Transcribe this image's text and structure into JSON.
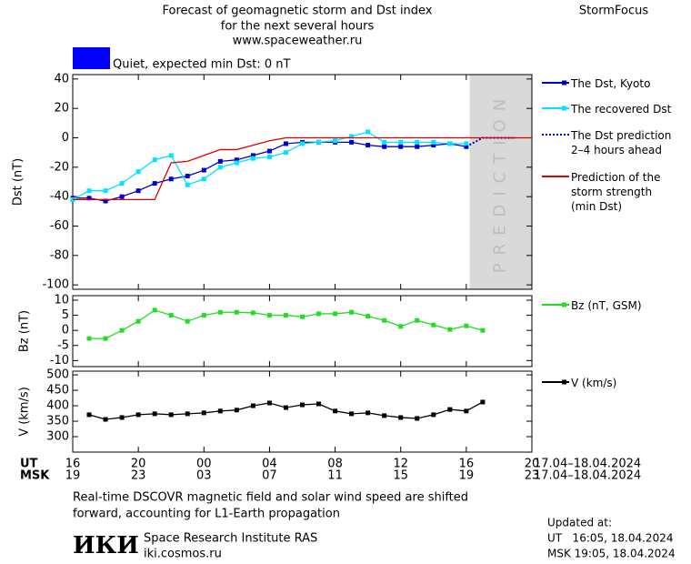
{
  "header": {
    "title_lines": [
      "Forecast of geomagnetic storm and Dst index",
      "for the next several hours",
      "www.spaceweather.ru"
    ],
    "brand": "StormFocus",
    "status": "Quiet, expected min Dst: 0 nT",
    "status_color": "#0000ff"
  },
  "x_axis": {
    "xlim": [
      0,
      28
    ],
    "xticks": [
      {
        "value": 0,
        "label": "16"
      },
      {
        "value": 4,
        "label": "20"
      },
      {
        "value": 8,
        "label": "00"
      },
      {
        "value": 12,
        "label": "04"
      },
      {
        "value": 16,
        "label": "08"
      },
      {
        "value": 20,
        "label": "12"
      },
      {
        "value": 24,
        "label": "16"
      },
      {
        "value": 28,
        "label": "20"
      }
    ],
    "x2ticks": [
      {
        "value": 0,
        "label": "19"
      },
      {
        "value": 4,
        "label": "23"
      },
      {
        "value": 8,
        "label": "03"
      },
      {
        "value": 12,
        "label": "07"
      },
      {
        "value": 16,
        "label": "11"
      },
      {
        "value": 20,
        "label": "15"
      },
      {
        "value": 24,
        "label": "19"
      },
      {
        "value": 28,
        "label": "23"
      }
    ],
    "row_labels": [
      "UT",
      "MSK"
    ],
    "date_ranges": [
      "17.04–18.04.2024",
      "17.04–18.04.2024"
    ]
  },
  "chart_data": [
    {
      "type": "line",
      "ylabel": "Dst (nT)",
      "ylim": [
        -103,
        43
      ],
      "yticks": [
        40,
        20,
        0,
        -20,
        -40,
        -60,
        -80,
        -100
      ],
      "prediction_span": [
        24.2,
        28
      ],
      "prediction_label": "PREDICTION",
      "series": [
        {
          "name": "The Dst, Kyoto",
          "color": "#0000cc",
          "marker": true,
          "style": "solid",
          "x": [
            0,
            1,
            2,
            3,
            4,
            5,
            6,
            7,
            8,
            9,
            10,
            11,
            12,
            13,
            14,
            15,
            16,
            17,
            18,
            19,
            20,
            21,
            22,
            23,
            24
          ],
          "values": [
            -41,
            -41,
            -43,
            -40,
            -36,
            -31,
            -28,
            -26,
            -22,
            -16,
            -15,
            -12,
            -9,
            -4,
            -3,
            -3,
            -3,
            -3,
            -5,
            -6,
            -6,
            -6,
            -5,
            -4,
            -6
          ]
        },
        {
          "name": "The recovered Dst",
          "color": "#00e5ff",
          "marker": true,
          "style": "solid",
          "x": [
            0,
            1,
            2,
            3,
            4,
            5,
            6,
            7,
            8,
            9,
            10,
            11,
            12,
            13,
            14,
            15,
            16,
            17,
            18,
            19,
            20,
            21,
            22,
            23,
            24
          ],
          "values": [
            -42,
            -36,
            -36,
            -31,
            -23,
            -15,
            -12,
            -32,
            -28,
            -20,
            -17,
            -14,
            -13,
            -10,
            -4,
            -3,
            -2,
            1,
            4,
            -3,
            -3,
            -3,
            -3,
            -4,
            -4
          ]
        },
        {
          "name": "The Dst prediction\n2–4 hours ahead",
          "color": "#0000cc",
          "marker": false,
          "style": "dotted",
          "x": [
            24,
            25,
            26,
            27
          ],
          "values": [
            -6,
            0,
            0,
            0
          ]
        },
        {
          "name": "Prediction of the\nstorm strength\n(min Dst)",
          "color": "#dd0000",
          "marker": false,
          "style": "solid",
          "x": [
            0,
            5,
            6,
            7,
            8,
            9,
            10,
            11,
            12,
            13,
            28
          ],
          "values": [
            -42,
            -42,
            -17,
            -16,
            -12,
            -8,
            -8,
            -5,
            -2,
            0,
            0
          ]
        }
      ]
    },
    {
      "type": "line",
      "ylabel": "Bz (nT)",
      "ylim": [
        -12,
        11.5
      ],
      "yticks": [
        10,
        5,
        0,
        -5,
        -10
      ],
      "series": [
        {
          "name": "Bz (nT, GSM)",
          "color": "#22dd22",
          "marker": true,
          "style": "solid",
          "x": [
            1,
            2,
            3,
            4,
            5,
            6,
            7,
            8,
            9,
            10,
            11,
            12,
            13,
            14,
            15,
            16,
            17,
            18,
            19,
            20,
            21,
            22,
            23,
            24,
            25
          ],
          "values": [
            -2.7,
            -2.7,
            0,
            3,
            6.7,
            5,
            3,
            5,
            6,
            6,
            5.8,
            5,
            5,
            4.5,
            5.5,
            5.5,
            6,
            4.7,
            3.3,
            1.3,
            3.3,
            1.8,
            0.3,
            1.5,
            0
          ]
        }
      ]
    },
    {
      "type": "line",
      "ylabel": "V (km/s)",
      "ylim": [
        250,
        512
      ],
      "yticks": [
        500,
        450,
        400,
        350,
        300
      ],
      "series": [
        {
          "name": "V (km/s)",
          "color": "#000000",
          "marker": true,
          "style": "solid",
          "x": [
            1,
            2,
            3,
            4,
            5,
            6,
            7,
            8,
            9,
            10,
            11,
            12,
            13,
            14,
            15,
            16,
            17,
            18,
            19,
            20,
            21,
            22,
            23,
            24,
            25
          ],
          "values": [
            371,
            356,
            362,
            371,
            374,
            371,
            374,
            377,
            383,
            386,
            400,
            409,
            394,
            403,
            406,
            383,
            374,
            377,
            368,
            362,
            359,
            371,
            388,
            383,
            412
          ]
        }
      ]
    }
  ],
  "footer": {
    "note_lines": [
      "Real-time DSCOVR magnetic field and solar wind speed are shifted",
      "forward, accounting for L1-Earth propagation"
    ],
    "logo": "ИКИ",
    "institute": "Space Research Institute RAS",
    "site": "iki.cosmos.ru",
    "updated_lines": [
      "Updated at:",
      "UT   16:05, 18.04.2024",
      "MSK 19:05, 18.04.2024"
    ]
  }
}
